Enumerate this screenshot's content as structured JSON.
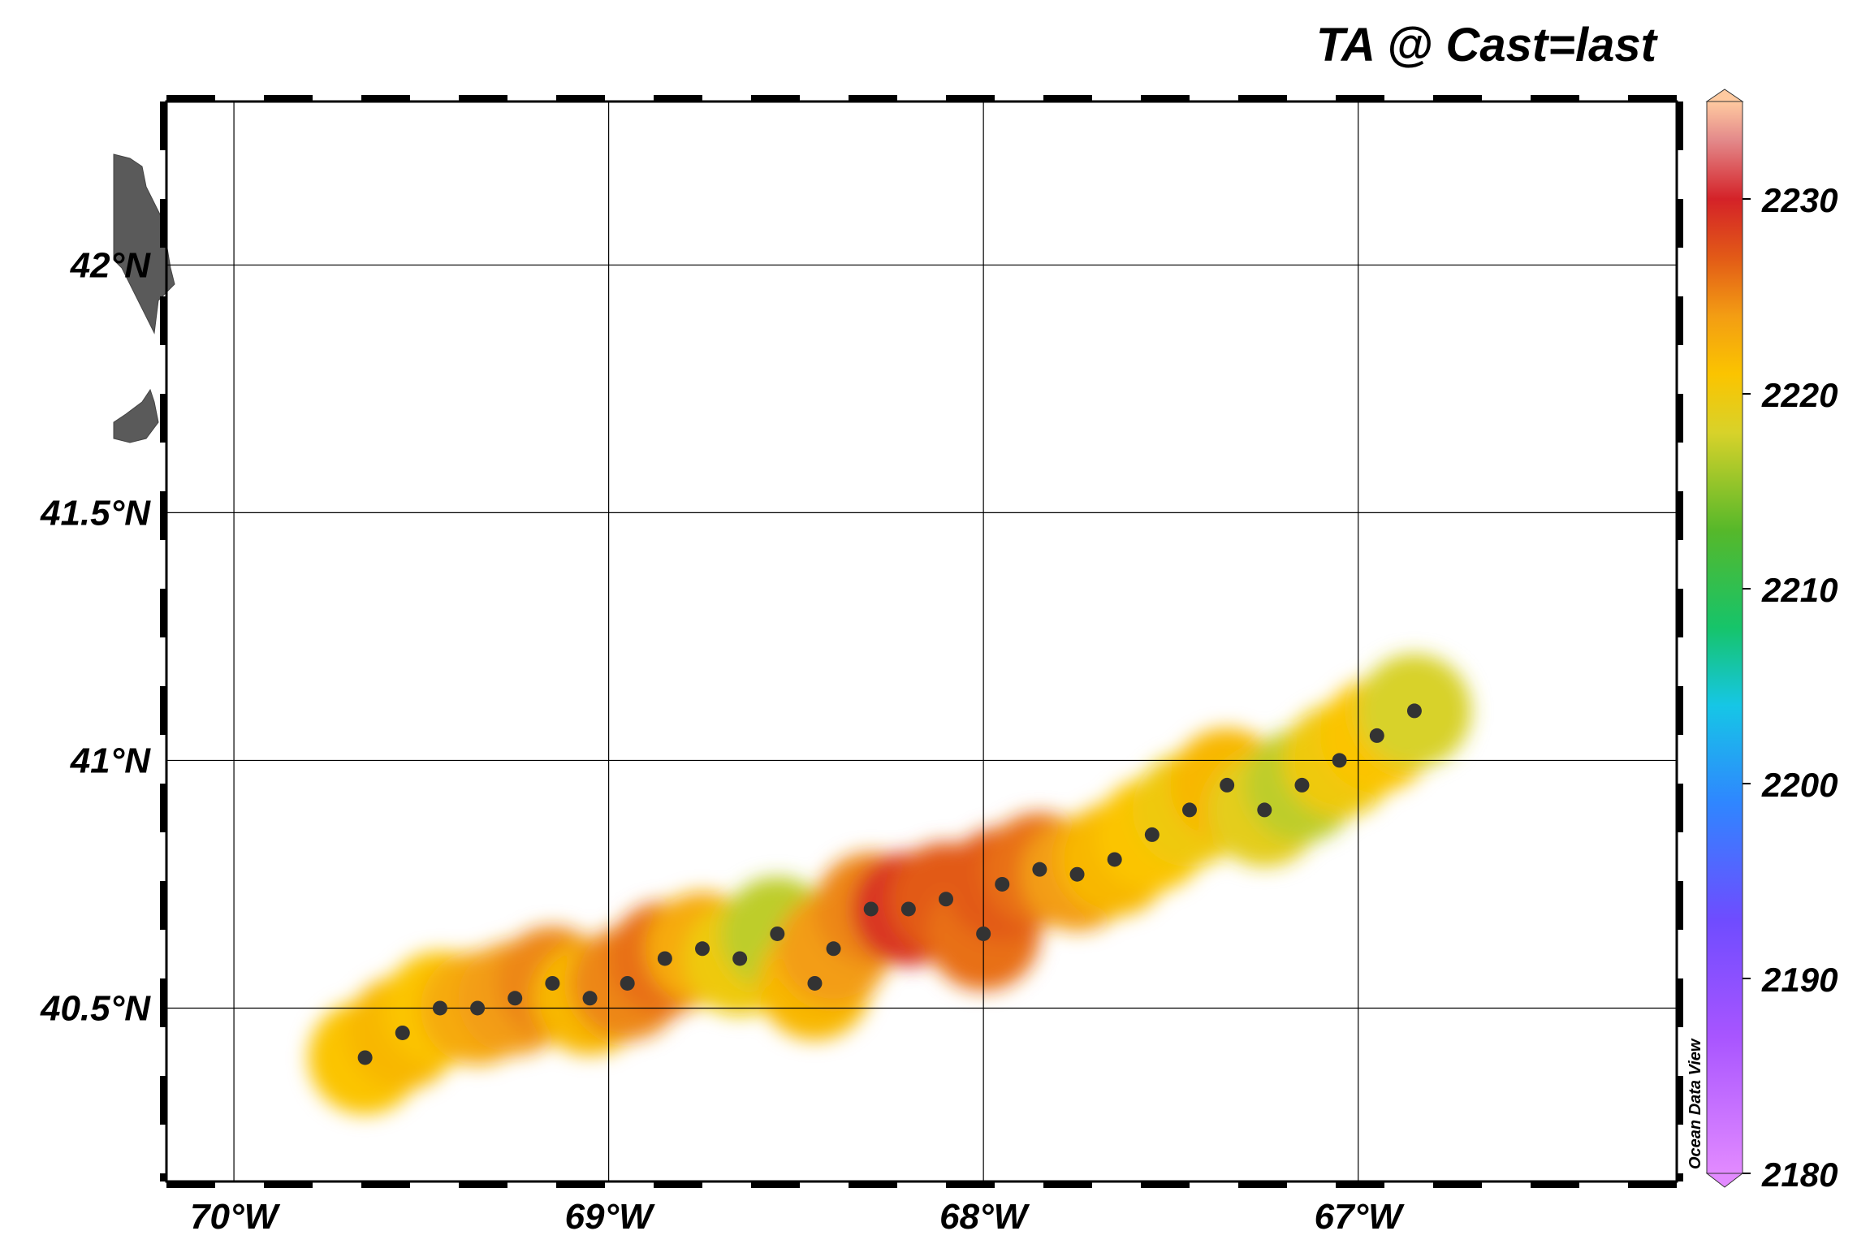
{
  "title": "TA @ Cast=last",
  "watermark": "Ocean Data View",
  "colorbar": {
    "ticks": [
      "2230",
      "2220",
      "2210",
      "2200",
      "2190",
      "2180"
    ],
    "tick_values": [
      2230,
      2220,
      2210,
      2200,
      2190,
      2180
    ],
    "min": 2180,
    "max": 2235,
    "stops": [
      {
        "value": 2180,
        "color": "#e28aff"
      },
      {
        "value": 2187,
        "color": "#a855ff"
      },
      {
        "value": 2193,
        "color": "#6f4cff"
      },
      {
        "value": 2199,
        "color": "#2f86ff"
      },
      {
        "value": 2204,
        "color": "#16c6e6"
      },
      {
        "value": 2208,
        "color": "#16c46a"
      },
      {
        "value": 2213,
        "color": "#56b82a"
      },
      {
        "value": 2218,
        "color": "#d8d22a"
      },
      {
        "value": 2221,
        "color": "#fbc400"
      },
      {
        "value": 2224,
        "color": "#f39d13"
      },
      {
        "value": 2227,
        "color": "#e25a17"
      },
      {
        "value": 2230,
        "color": "#d42228"
      },
      {
        "value": 2233,
        "color": "#e3898a"
      },
      {
        "value": 2235,
        "color": "#ffcaa0"
      }
    ]
  },
  "axes": {
    "x_labels": [
      "70°W",
      "69°W",
      "68°W",
      "67°W"
    ],
    "x_values": [
      -70,
      -69,
      -68,
      -67
    ],
    "y_labels": [
      "42°N",
      "41.5°N",
      "41°N",
      "40.5°N"
    ],
    "y_values": [
      42,
      41.5,
      41,
      40.5
    ],
    "lon_range": [
      -70.18,
      -66.15
    ],
    "lat_range": [
      40.15,
      42.33
    ]
  },
  "land_color": "#5a5a5a",
  "station_color": "#333333",
  "stations": [
    [
      -69.65,
      40.4,
      2221
    ],
    [
      -69.55,
      40.45,
      2222
    ],
    [
      -69.45,
      40.5,
      2221
    ],
    [
      -69.35,
      40.5,
      2223
    ],
    [
      -69.25,
      40.52,
      2224
    ],
    [
      -69.15,
      40.55,
      2225
    ],
    [
      -69.05,
      40.52,
      2222
    ],
    [
      -68.95,
      40.55,
      2225
    ],
    [
      -68.85,
      40.6,
      2226
    ],
    [
      -68.75,
      40.62,
      2223
    ],
    [
      -68.65,
      40.6,
      2220
    ],
    [
      -68.55,
      40.65,
      2217
    ],
    [
      -68.45,
      40.55,
      2222
    ],
    [
      -68.4,
      40.62,
      2224
    ],
    [
      -68.3,
      40.7,
      2225
    ],
    [
      -68.2,
      40.7,
      2229
    ],
    [
      -68.1,
      40.72,
      2227
    ],
    [
      -68.0,
      40.65,
      2226
    ],
    [
      -67.95,
      40.75,
      2227
    ],
    [
      -67.85,
      40.78,
      2226
    ],
    [
      -67.75,
      40.77,
      2224
    ],
    [
      -67.65,
      40.8,
      2222
    ],
    [
      -67.55,
      40.85,
      2221
    ],
    [
      -67.45,
      40.9,
      2220
    ],
    [
      -67.35,
      40.95,
      2222
    ],
    [
      -67.25,
      40.9,
      2219
    ],
    [
      -67.15,
      40.95,
      2217
    ],
    [
      -67.05,
      41.0,
      2220
    ],
    [
      -66.95,
      41.05,
      2221
    ],
    [
      -66.85,
      41.1,
      2218
    ]
  ],
  "land_paths": [
    "M 140 190 L 160 195 L 175 205 L 180 230 L 190 250 L 200 270 L 205 300 L 210 330 L 215 350 L 195 370 L 190 410 L 175 380 L 165 360 L 150 330 L 140 320 Z",
    "M 140 520 L 155 510 L 175 495 L 185 480 L 190 495 L 195 520 L 180 540 L 160 545 L 140 540 Z"
  ]
}
